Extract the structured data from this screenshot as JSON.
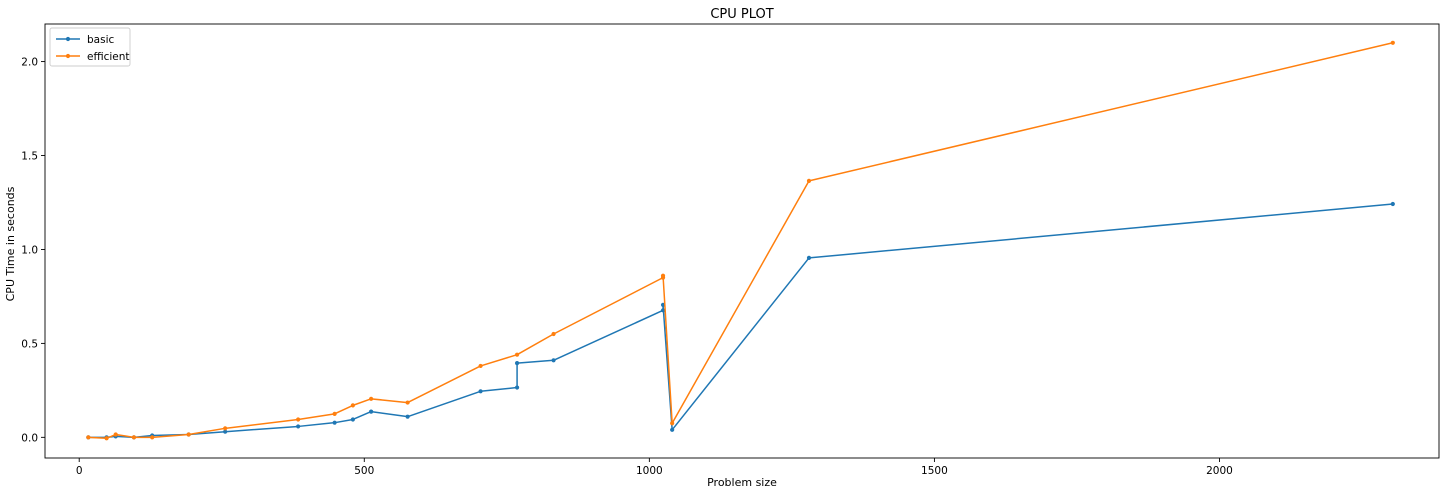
{
  "chart_data": {
    "type": "line",
    "title": "CPU PLOT",
    "xlabel": "Problem size",
    "ylabel": "CPU Time in seconds",
    "xlim": [
      -60,
      2385
    ],
    "ylim": [
      -0.11,
      2.2
    ],
    "xticks": [
      0,
      500,
      1000,
      1500,
      2000
    ],
    "yticks": [
      0.0,
      0.5,
      1.0,
      1.5,
      2.0
    ],
    "xtick_labels": [
      "0",
      "500",
      "1000",
      "1500",
      "2000"
    ],
    "ytick_labels": [
      "0.0",
      "0.5",
      "1.0",
      "1.5",
      "2.0"
    ],
    "grid": false,
    "legend_position": "top-left",
    "series": [
      {
        "name": "basic",
        "color": "#1f77b4",
        "x": [
          16,
          48,
          64,
          96,
          128,
          192,
          256,
          384,
          448,
          480,
          512,
          576,
          704,
          768,
          768,
          832,
          1024,
          1024,
          1040,
          1280,
          2304
        ],
        "y": [
          0.0,
          0.0,
          0.005,
          0.0,
          0.01,
          0.015,
          0.03,
          0.058,
          0.078,
          0.095,
          0.137,
          0.11,
          0.245,
          0.265,
          0.395,
          0.41,
          0.676,
          0.705,
          0.04,
          0.955,
          1.242
        ]
      },
      {
        "name": "efficient",
        "color": "#ff7f0e",
        "x": [
          16,
          48,
          64,
          96,
          128,
          192,
          256,
          384,
          448,
          480,
          512,
          576,
          704,
          768,
          832,
          1024,
          1024,
          1040,
          1280,
          2304
        ],
        "y": [
          0.0,
          -0.005,
          0.015,
          0.0,
          0.0,
          0.015,
          0.048,
          0.095,
          0.125,
          0.17,
          0.205,
          0.185,
          0.38,
          0.44,
          0.55,
          0.85,
          0.86,
          0.075,
          1.365,
          2.1
        ]
      }
    ]
  }
}
